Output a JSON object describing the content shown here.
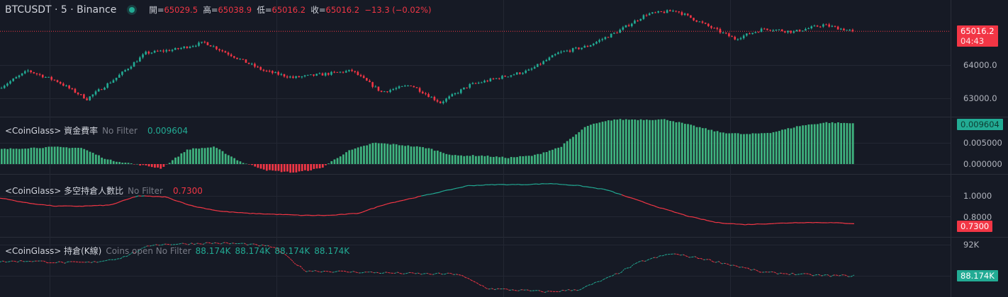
{
  "header": {
    "symbol": "BTCUSDT · 5 · Binance",
    "open_label": "開=",
    "open": "65029.5",
    "high_label": "高=",
    "high": "65038.9",
    "low_label": "低=",
    "low": "65016.2",
    "close_label": "收=",
    "close": "65016.2",
    "change": "−13.3 (−0.02%)"
  },
  "price_axis": {
    "ticks": [
      "64000.0",
      "63000.0"
    ],
    "last_price": "65016.2",
    "countdown": "04:43"
  },
  "funding": {
    "title": "<CoinGlass> 資金費率",
    "filter": "No Filter",
    "value": "0.009604",
    "ticks": [
      "0.005000",
      "0.000000"
    ]
  },
  "ratio": {
    "title": "<CoinGlass> 多空持倉人數比",
    "filter": "No Filter",
    "value": "0.7300",
    "ticks": [
      "1.0000",
      "0.8000"
    ]
  },
  "oi": {
    "title": "<CoinGlass> 持倉(K線)",
    "filter": "Coins open No Filter",
    "values": [
      "88.174K",
      "88.174K",
      "88.174K",
      "88.174K"
    ],
    "tick": "92K",
    "last": "88.174K"
  },
  "colors": {
    "up": "#22ab94",
    "down": "#f23645",
    "background": "#161a25",
    "grid": "#232733"
  },
  "chart_data": [
    {
      "type": "candlestick",
      "title": "BTCUSDT · 5 · Binance",
      "ylim": [
        62450,
        65830
      ],
      "close_path": [
        63300,
        63830,
        63510,
        62980,
        63620,
        64360,
        64470,
        64680,
        64255,
        63830,
        63620,
        63720,
        63830,
        63190,
        63400,
        62870,
        63400,
        63620,
        63830,
        64360,
        64570,
        65000,
        65530,
        65640,
        65210,
        64790,
        65100,
        65000,
        65210,
        65016.2
      ]
    },
    {
      "type": "bar",
      "title": "資金費率",
      "ylim": [
        -0.0025,
        0.0105
      ],
      "values": [
        0.0035,
        0.0038,
        0.004,
        0.0038,
        0.001,
        0.0,
        -0.001,
        0.0035,
        0.004,
        0.0005,
        -0.0015,
        -0.002,
        -0.001,
        0.003,
        0.005,
        0.0045,
        0.0038,
        0.002,
        0.002,
        0.0015,
        0.002,
        0.004,
        0.009,
        0.0105,
        0.0105,
        0.0105,
        0.009,
        0.0075,
        0.007,
        0.0075,
        0.009,
        0.0098,
        0.0096
      ]
    },
    {
      "type": "line",
      "title": "多空持倉人數比",
      "ylim": [
        0.65,
        1.17
      ],
      "values": [
        0.98,
        0.93,
        0.9,
        0.9,
        0.91,
        1.0,
        0.99,
        0.9,
        0.85,
        0.83,
        0.82,
        0.81,
        0.81,
        0.83,
        0.92,
        0.98,
        1.04,
        1.1,
        1.11,
        1.11,
        1.12,
        1.1,
        1.06,
        0.97,
        0.88,
        0.8,
        0.74,
        0.72,
        0.73,
        0.74,
        0.74,
        0.73
      ]
    },
    {
      "type": "line",
      "title": "持倉(K線)",
      "ylim": [
        85.4,
        92.8
      ],
      "values": [
        89.9,
        90.0,
        89.8,
        89.8,
        90.4,
        92.0,
        92.1,
        92.2,
        92.1,
        91.7,
        88.8,
        88.7,
        88.6,
        88.5,
        88.4,
        88.4,
        86.6,
        86.4,
        86.2,
        86.5,
        88.0,
        89.9,
        90.9,
        90.3,
        89.5,
        88.6,
        88.4,
        88.2,
        88.174
      ]
    }
  ]
}
